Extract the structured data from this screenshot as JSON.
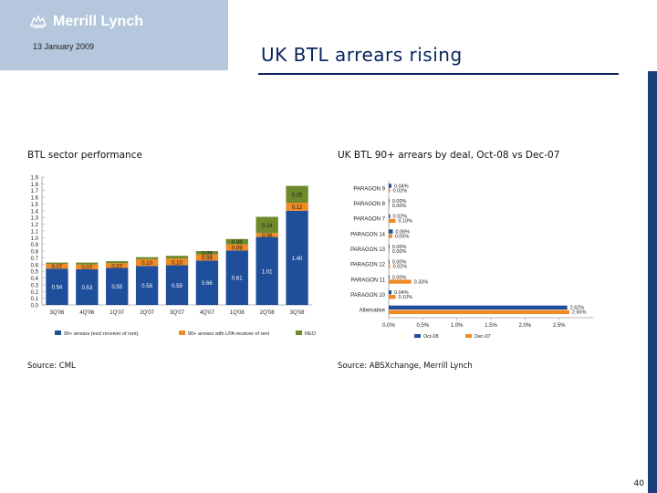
{
  "header": {
    "brand": "Merrill Lynch",
    "date": "13 January 2009",
    "title": "UK BTL arrears rising"
  },
  "left_panel": {
    "title": "BTL sector performance",
    "source": "Source: CML"
  },
  "right_panel": {
    "title": "UK BTL 90+ arrears by deal, Oct-08 vs Dec-07",
    "source": "Source: ABSXchange, Merrill Lynch"
  },
  "page_number": "40",
  "colors": {
    "blue": "#1f4e9a",
    "orange": "#f08a24",
    "green": "#6e8a2a",
    "title": "#0a2560"
  },
  "chart_data": [
    {
      "type": "bar",
      "stacked": true,
      "categories": [
        "3Q'06",
        "4Q'06",
        "1Q'07",
        "2Q'07",
        "3Q'07",
        "4Q'07",
        "1Q'08",
        "2Q'08",
        "3Q'08"
      ],
      "ylim": [
        0,
        1.9
      ],
      "yticks": [
        "0.0",
        "0.1",
        "0.2",
        "0.3",
        "0.4",
        "0.5",
        "0.6",
        "0.7",
        "0.8",
        "0.9",
        "1.0",
        "1.1",
        "1.2",
        "1.3",
        "1.4",
        "1.5",
        "1.6",
        "1.7",
        "1.8",
        "1.9"
      ],
      "series": [
        {
          "name": "90+ arrears (excl receiver of rent)",
          "values": [
            0.54,
            0.53,
            0.55,
            0.58,
            0.59,
            0.66,
            0.81,
            1.01,
            1.4
          ]
        },
        {
          "name": "90+ arrears with LPA receiver of rent",
          "values": [
            0.07,
            0.07,
            0.07,
            0.1,
            0.1,
            0.09,
            0.09,
            0.06,
            0.12
          ]
        },
        {
          "name": "REO",
          "values": [
            0.02,
            0.03,
            0.03,
            0.03,
            0.04,
            0.05,
            0.08,
            0.24,
            0.25
          ]
        }
      ],
      "labels": [
        [
          "0.54",
          "0.53",
          "0.55",
          "0.58",
          "0.59",
          "0.66",
          "0.81",
          "1.01",
          "1.40"
        ],
        [
          "0.07",
          "0.07",
          "0.07",
          "0.10",
          "0.10",
          "0.09",
          "0.09",
          "0.06",
          "0.12"
        ],
        [
          "",
          "",
          "",
          "",
          "",
          "0.05",
          "0.08",
          "0.24",
          "0.25"
        ]
      ],
      "legend": "bottom"
    },
    {
      "type": "bar",
      "orientation": "horizontal",
      "categories": [
        "PARAGON 9",
        "PARAGON 8",
        "PARAGON 7",
        "PARAGON 14",
        "PARAGON 13",
        "PARAGON 12",
        "PARAGON 11",
        "PARAGON 10",
        "Alternative"
      ],
      "xlim": [
        0,
        3.0
      ],
      "xticks": [
        "0.0%",
        "0.5%",
        "1.0%",
        "1.5%",
        "2.0%",
        "2.5%"
      ],
      "series": [
        {
          "name": "Oct-08",
          "values": [
            0.04,
            0.0,
            0.02,
            0.06,
            0.0,
            0.0,
            0.0,
            0.04,
            2.62
          ]
        },
        {
          "name": "Dec-07",
          "values": [
            0.02,
            0.0,
            0.1,
            0.05,
            0.0,
            0.02,
            0.33,
            0.1,
            2.65
          ]
        }
      ],
      "labels": [
        [
          "0.04%",
          "0.00%",
          "0.02%",
          "0.06%",
          "0.00%",
          "0.00%",
          "0.00%",
          "0.04%",
          "2.62%"
        ],
        [
          "0.02%",
          "0.00%",
          "0.10%",
          "0.05%",
          "0.00%",
          "0.02%",
          "0.33%",
          "0.10%",
          "2.65%"
        ]
      ],
      "legend": "bottom"
    }
  ]
}
